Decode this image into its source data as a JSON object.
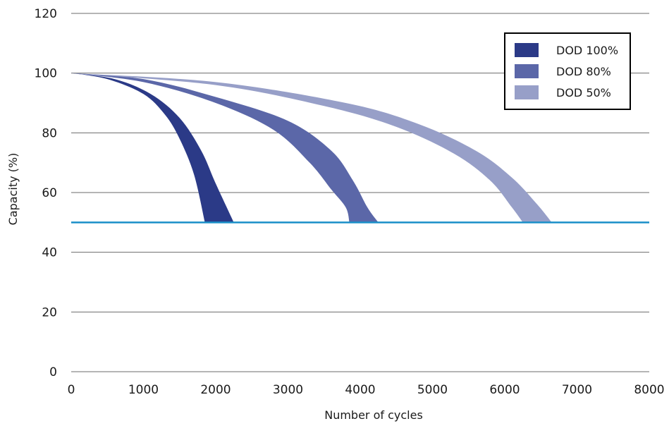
{
  "chart_data": {
    "type": "area",
    "xlabel": "Number of cycles",
    "ylabel": "Capacity (%)",
    "xlim": [
      0,
      8000
    ],
    "ylim": [
      0,
      120
    ],
    "xticks": [
      "0",
      "1000",
      "2000",
      "3000",
      "4000",
      "5000",
      "6000",
      "7000",
      "8000"
    ],
    "yticks": [
      "0",
      "20",
      "40",
      "60",
      "80",
      "100",
      "120"
    ],
    "grid": "horizontal",
    "legend_position": "top-right",
    "threshold_line": {
      "y": 50,
      "color": "#1a8fc8"
    },
    "series": [
      {
        "name": "DOD 100%",
        "color": "#2b3a87",
        "lower_curve": [
          [
            0,
            100
          ],
          [
            500,
            98
          ],
          [
            1000,
            93
          ],
          [
            1300,
            86
          ],
          [
            1500,
            78
          ],
          [
            1700,
            66
          ],
          [
            1850,
            50
          ]
        ],
        "upper_curve": [
          [
            0,
            100
          ],
          [
            600,
            98
          ],
          [
            1100,
            93
          ],
          [
            1500,
            85
          ],
          [
            1800,
            74
          ],
          [
            2000,
            63
          ],
          [
            2250,
            50
          ]
        ]
      },
      {
        "name": "DOD 80%",
        "color": "#5b67a8",
        "lower_curve": [
          [
            0,
            100
          ],
          [
            1000,
            97
          ],
          [
            2000,
            90
          ],
          [
            2800,
            81
          ],
          [
            3300,
            70
          ],
          [
            3600,
            61
          ],
          [
            3800,
            55
          ],
          [
            3850,
            50
          ]
        ],
        "upper_curve": [
          [
            0,
            100
          ],
          [
            1000,
            98
          ],
          [
            2000,
            92
          ],
          [
            3000,
            84
          ],
          [
            3600,
            74
          ],
          [
            3900,
            64
          ],
          [
            4100,
            55
          ],
          [
            4250,
            50
          ]
        ]
      },
      {
        "name": "DOD 50%",
        "color": "#979fc8",
        "lower_curve": [
          [
            0,
            100
          ],
          [
            2000,
            96
          ],
          [
            3500,
            89
          ],
          [
            4500,
            82
          ],
          [
            5300,
            73
          ],
          [
            5800,
            64
          ],
          [
            6100,
            55
          ],
          [
            6250,
            50
          ]
        ],
        "upper_curve": [
          [
            0,
            100
          ],
          [
            2000,
            97
          ],
          [
            3800,
            90
          ],
          [
            4800,
            83
          ],
          [
            5600,
            74
          ],
          [
            6100,
            65
          ],
          [
            6450,
            56
          ],
          [
            6650,
            50
          ]
        ]
      }
    ]
  }
}
